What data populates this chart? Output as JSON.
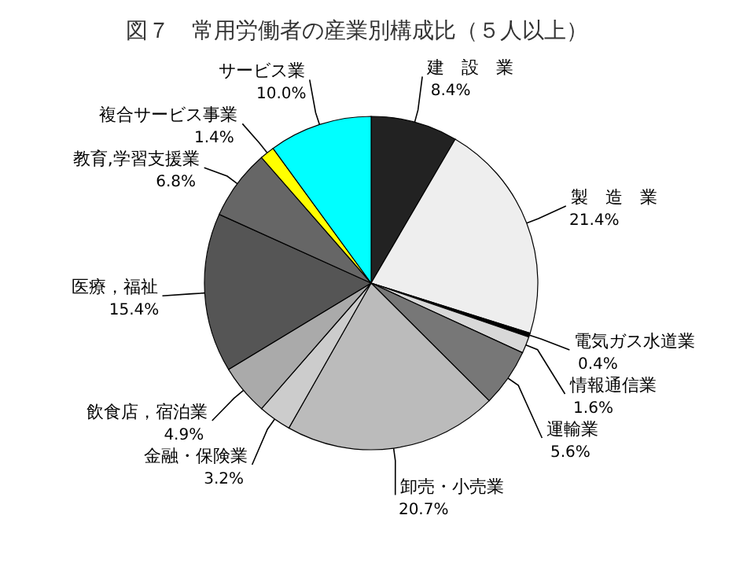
{
  "chart_data": {
    "type": "pie",
    "title": "図７　常用労働者の産業別構成比（５人以上）",
    "categories": [
      "建　設　業",
      "製　造　業",
      "電気ガス水道業",
      "情報通信業",
      "運輸業",
      "卸売・小売業",
      "金融・保険業",
      "飲食店，宿泊業",
      "医療，福祉",
      "教育,学習支援業",
      "複合サービス事業",
      "サービス業"
    ],
    "values": [
      8.4,
      21.4,
      0.4,
      1.6,
      5.6,
      20.7,
      3.2,
      4.9,
      15.4,
      6.8,
      1.4,
      10.0
    ],
    "value_labels": [
      "8.4%",
      "21.4%",
      "0.4%",
      "1.6%",
      "5.6%",
      "20.7%",
      "3.2%",
      "4.9%",
      "15.4%",
      "6.8%",
      "1.4%",
      "10.0%"
    ],
    "colors": [
      "#222222",
      "#eeeeee",
      "#000000",
      "#d8d8d8",
      "#777777",
      "#bbbbbb",
      "#cccccc",
      "#aaaaaa",
      "#555555",
      "#666666",
      "#ffff00",
      "#00ffff"
    ]
  }
}
